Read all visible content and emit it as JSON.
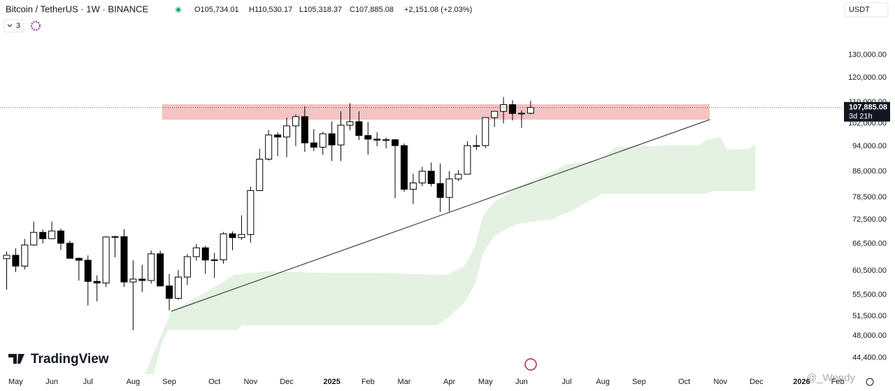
{
  "header": {
    "symbol": "Bitcoin / TetherUS · 1W · BINANCE",
    "open": "O105,734.01",
    "high": "H110,530.17",
    "low": "L105,318.37",
    "close": "C107,885.08",
    "change": "+2,151.08 (+2.03%)",
    "currency": "USDT",
    "indicator_count": "3"
  },
  "brand": "TradingView",
  "watermark": "@_Wendy",
  "chart_data": {
    "type": "candlestick",
    "log_scale": true,
    "up_color": "#ffffff",
    "down_color": "#000000",
    "open": [
      63118,
      63892,
      61484,
      66274,
      69300,
      67765,
      69644,
      66676,
      63210,
      62773,
      58239,
      57899,
      68165,
      68255,
      58116,
      58712,
      58427,
      64220,
      57301,
      54841,
      59132,
      63578,
      65602,
      62819,
      62870,
      68953,
      68022,
      68775,
      80370,
      89845,
      97900,
      97185,
      101109,
      104463,
      95186,
      93738,
      98314,
      94488,
      101331,
      102620,
      97700,
      96462,
      96118,
      96258,
      94270,
      80734,
      82574,
      86082,
      82390,
      78430,
      83760,
      85170,
      94260,
      94277,
      104118,
      106454,
      109004,
      105643,
      105734.01
    ],
    "high": [
      64734,
      65500,
      67700,
      71979,
      70000,
      71997,
      70195,
      67298,
      63369,
      63861,
      59500,
      68366,
      68487,
      70079,
      62745,
      61800,
      65000,
      64962,
      59809,
      60670,
      64133,
      66500,
      66100,
      64478,
      69400,
      69519,
      73620,
      81500,
      93265,
      99588,
      98871,
      104088,
      105250,
      108353,
      99963,
      98976,
      102724,
      106422,
      109588,
      106457,
      102500,
      98826,
      97000,
      96500,
      95000,
      85300,
      87470,
      88765,
      88500,
      86100,
      86429,
      95758,
      97895,
      104145,
      105819,
      111980,
      110718,
      106794,
      110530.17
    ],
    "low": [
      56552,
      60187,
      60750,
      66060,
      66600,
      67612,
      65078,
      63379,
      58402,
      53485,
      54260,
      57100,
      63456,
      57122,
      49000,
      56078,
      57787,
      57201,
      52550,
      54583,
      57493,
      62670,
      59828,
      58946,
      62010,
      65060,
      67478,
      66835,
      80216,
      89376,
      90791,
      90500,
      94150,
      92175,
      92520,
      91220,
      89256,
      89256,
      99550,
      96150,
      91231,
      94088,
      93388,
      78258,
      80000,
      76606,
      81666,
      81565,
      74508,
      74589,
      83112,
      85144,
      92800,
      93377,
      100718,
      102000,
      103068,
      100372,
      105318.37
    ],
    "close": [
      63892,
      61483,
      66274,
      69300,
      67765,
      69644,
      66676,
      63210,
      62773,
      58239,
      57899,
      68165,
      68255,
      58116,
      58712,
      58427,
      64220,
      57301,
      54841,
      59132,
      63578,
      65602,
      62819,
      62870,
      68953,
      68022,
      68775,
      80370,
      89845,
      97900,
      97185,
      101109,
      104463,
      95186,
      93738,
      98314,
      94488,
      101331,
      102620,
      97700,
      96462,
      96118,
      96258,
      94270,
      80734,
      82574,
      86082,
      82390,
      78430,
      83760,
      85170,
      94260,
      94277,
      104118,
      106454,
      109004,
      105643,
      105734,
      107885.08
    ],
    "ylim": [
      41900,
      158000
    ],
    "yticks": [
      {
        "value": 130000,
        "label": "130,000.00"
      },
      {
        "value": 120000,
        "label": "120,000.00"
      },
      {
        "value": 110000,
        "label": "110,000.00"
      },
      {
        "value": 102000,
        "label": "102,000.00"
      },
      {
        "value": 94000,
        "label": "94,000.00"
      },
      {
        "value": 86000,
        "label": "86,000.00"
      },
      {
        "value": 78500,
        "label": "78,500.00"
      },
      {
        "value": 72500,
        "label": "72,500.00"
      },
      {
        "value": 66500,
        "label": "66,500.00"
      },
      {
        "value": 60500,
        "label": "60,500.00"
      },
      {
        "value": 55500,
        "label": "55,500.00"
      },
      {
        "value": 51500,
        "label": "51,500.00"
      },
      {
        "value": 48000,
        "label": "48,000.00"
      },
      {
        "value": 44400,
        "label": "44,400.00"
      }
    ],
    "xticks": [
      {
        "value": 1,
        "label": "May"
      },
      {
        "value": 5,
        "label": "Jun"
      },
      {
        "value": 9,
        "label": "Jul"
      },
      {
        "value": 14,
        "label": "Aug"
      },
      {
        "value": 18,
        "label": "Sep"
      },
      {
        "value": 23,
        "label": "Oct"
      },
      {
        "value": 27,
        "label": "Nov"
      },
      {
        "value": 31,
        "label": "Dec"
      },
      {
        "value": 36,
        "label": "2025"
      },
      {
        "value": 40,
        "label": "Feb"
      },
      {
        "value": 44,
        "label": "Mar"
      },
      {
        "value": 49,
        "label": "Apr"
      },
      {
        "value": 53,
        "label": "May"
      },
      {
        "value": 57,
        "label": "Jun"
      },
      {
        "value": 62,
        "label": "Jul"
      },
      {
        "value": 66,
        "label": "Aug"
      },
      {
        "value": 70,
        "label": "Sep"
      },
      {
        "value": 75,
        "label": "Oct"
      },
      {
        "value": 79,
        "label": "Nov"
      },
      {
        "value": 83,
        "label": "Dec"
      },
      {
        "value": 88,
        "label": "2026"
      },
      {
        "value": 92,
        "label": "Feb"
      }
    ],
    "last_price": {
      "value": 107885.08,
      "label": "107,885.08"
    },
    "countdown": "3d 21h"
  }
}
